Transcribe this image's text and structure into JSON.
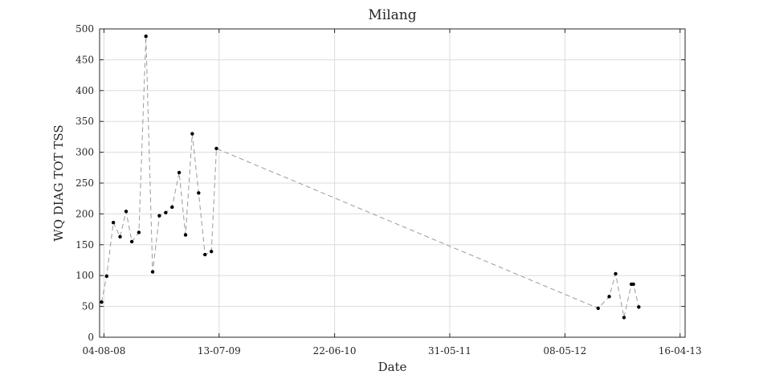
{
  "chart_data": {
    "type": "line",
    "title": "Milang",
    "xlabel": "Date",
    "ylabel": "WQ DIAG TOT TSS",
    "ylim": [
      0,
      500
    ],
    "yticks": [
      0,
      50,
      100,
      150,
      200,
      250,
      300,
      350,
      400,
      450,
      500
    ],
    "xlim": [
      "2008-07-22",
      "2013-05-01"
    ],
    "xticks": [
      {
        "date": "2008-08-04",
        "label": "04-08-08"
      },
      {
        "date": "2009-07-13",
        "label": "13-07-09"
      },
      {
        "date": "2010-06-22",
        "label": "22-06-10"
      },
      {
        "date": "2011-05-31",
        "label": "31-05-11"
      },
      {
        "date": "2012-05-08",
        "label": "08-05-12"
      },
      {
        "date": "2013-04-16",
        "label": "16-04-13"
      }
    ],
    "grid": true,
    "series": [
      {
        "line_color": "#9a9a9a",
        "marker_color": "#000000",
        "points": [
          {
            "x": "2008-07-28",
            "y": 57
          },
          {
            "x": "2008-08-12",
            "y": 99
          },
          {
            "x": "2008-09-01",
            "y": 186
          },
          {
            "x": "2008-09-21",
            "y": 163
          },
          {
            "x": "2008-10-09",
            "y": 204
          },
          {
            "x": "2008-10-26",
            "y": 155
          },
          {
            "x": "2008-11-16",
            "y": 170
          },
          {
            "x": "2008-12-07",
            "y": 488
          },
          {
            "x": "2008-12-27",
            "y": 106
          },
          {
            "x": "2009-01-16",
            "y": 197
          },
          {
            "x": "2009-02-04",
            "y": 202
          },
          {
            "x": "2009-02-23",
            "y": 211
          },
          {
            "x": "2009-03-16",
            "y": 267
          },
          {
            "x": "2009-04-04",
            "y": 166
          },
          {
            "x": "2009-04-24",
            "y": 330
          },
          {
            "x": "2009-05-13",
            "y": 234
          },
          {
            "x": "2009-06-01",
            "y": 134
          },
          {
            "x": "2009-06-20",
            "y": 139
          },
          {
            "x": "2009-07-05",
            "y": 306
          },
          {
            "x": "2012-08-15",
            "y": 47
          },
          {
            "x": "2012-09-17",
            "y": 66
          },
          {
            "x": "2012-10-06",
            "y": 103
          },
          {
            "x": "2012-10-31",
            "y": 32
          },
          {
            "x": "2012-11-22",
            "y": 86
          },
          {
            "x": "2012-11-28",
            "y": 86
          },
          {
            "x": "2012-12-14",
            "y": 49
          }
        ]
      }
    ]
  }
}
